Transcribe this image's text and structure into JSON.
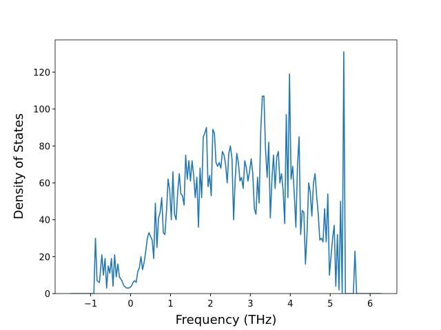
{
  "chart_data": {
    "type": "line",
    "xlabel": "Frequency (THz)",
    "ylabel": "Density of States",
    "x": [
      -1.5,
      -0.92,
      -0.88,
      -0.84,
      -0.78,
      -0.72,
      -0.68,
      -0.64,
      -0.6,
      -0.56,
      -0.52,
      -0.48,
      -0.44,
      -0.4,
      -0.36,
      -0.32,
      -0.28,
      -0.22,
      -0.16,
      -0.1,
      -0.04,
      0.02,
      0.06,
      0.1,
      0.14,
      0.18,
      0.22,
      0.26,
      0.3,
      0.34,
      0.38,
      0.42,
      0.46,
      0.5,
      0.54,
      0.58,
      0.62,
      0.66,
      0.7,
      0.74,
      0.78,
      0.82,
      0.86,
      0.9,
      0.94,
      0.98,
      1.02,
      1.06,
      1.1,
      1.14,
      1.18,
      1.22,
      1.26,
      1.3,
      1.34,
      1.38,
      1.42,
      1.46,
      1.5,
      1.54,
      1.58,
      1.62,
      1.66,
      1.7,
      1.74,
      1.78,
      1.82,
      1.86,
      1.9,
      1.94,
      1.98,
      2.02,
      2.06,
      2.1,
      2.14,
      2.18,
      2.22,
      2.26,
      2.3,
      2.34,
      2.38,
      2.42,
      2.46,
      2.5,
      2.54,
      2.58,
      2.62,
      2.66,
      2.7,
      2.74,
      2.78,
      2.82,
      2.86,
      2.9,
      2.94,
      2.98,
      3.02,
      3.06,
      3.1,
      3.14,
      3.18,
      3.22,
      3.26,
      3.3,
      3.34,
      3.38,
      3.42,
      3.46,
      3.5,
      3.54,
      3.58,
      3.62,
      3.66,
      3.7,
      3.74,
      3.78,
      3.82,
      3.86,
      3.9,
      3.94,
      3.98,
      4.02,
      4.06,
      4.1,
      4.14,
      4.18,
      4.22,
      4.26,
      4.3,
      4.34,
      4.38,
      4.42,
      4.46,
      4.5,
      4.54,
      4.58,
      4.62,
      4.66,
      4.7,
      4.74,
      4.78,
      4.82,
      4.86,
      4.9,
      4.94,
      4.98,
      5.02,
      5.06,
      5.1,
      5.14,
      5.18,
      5.22,
      5.26,
      5.3,
      5.34,
      5.38,
      5.58,
      5.62,
      5.66,
      6.28
    ],
    "series": [
      {
        "color": "#1f77b4",
        "values": [
          0,
          0,
          30,
          7,
          6,
          21,
          10,
          19,
          3,
          15,
          11,
          19,
          4,
          21,
          9,
          16,
          9,
          7,
          4,
          3,
          3,
          4,
          6,
          7,
          6,
          12,
          14,
          20,
          13,
          17,
          23,
          30,
          33,
          31,
          29,
          19,
          49,
          25,
          41,
          44,
          52,
          33,
          32,
          45,
          62,
          56,
          40,
          66,
          43,
          40,
          55,
          65,
          54,
          53,
          48,
          75,
          62,
          72,
          61,
          72,
          64,
          52,
          63,
          36,
          68,
          52,
          85,
          87,
          90,
          58,
          64,
          53,
          89,
          87,
          71,
          69,
          71,
          68,
          77,
          75,
          70,
          60,
          76,
          80,
          73,
          40,
          62,
          76,
          71,
          61,
          63,
          57,
          72,
          68,
          61,
          66,
          73,
          65,
          46,
          43,
          63,
          49,
          88,
          107,
          107,
          78,
          63,
          82,
          41,
          62,
          75,
          57,
          74,
          77,
          60,
          65,
          56,
          38,
          97,
          52,
          119,
          62,
          69,
          54,
          36,
          69,
          85,
          32,
          45,
          44,
          16,
          33,
          60,
          55,
          42,
          60,
          65,
          53,
          43,
          29,
          30,
          28,
          46,
          28,
          54,
          10,
          20,
          30,
          37,
          4,
          32,
          2,
          50,
          0,
          131,
          0,
          0,
          23,
          0,
          0
        ]
      }
    ],
    "xlim": [
      -1.89,
      6.67
    ],
    "ylim": [
      0,
      137.5
    ],
    "xticks": [
      {
        "value": -1,
        "label": "−1"
      },
      0,
      1,
      2,
      3,
      4,
      5,
      6
    ],
    "yticks": [
      0,
      20,
      40,
      60,
      80,
      100,
      120
    ]
  }
}
